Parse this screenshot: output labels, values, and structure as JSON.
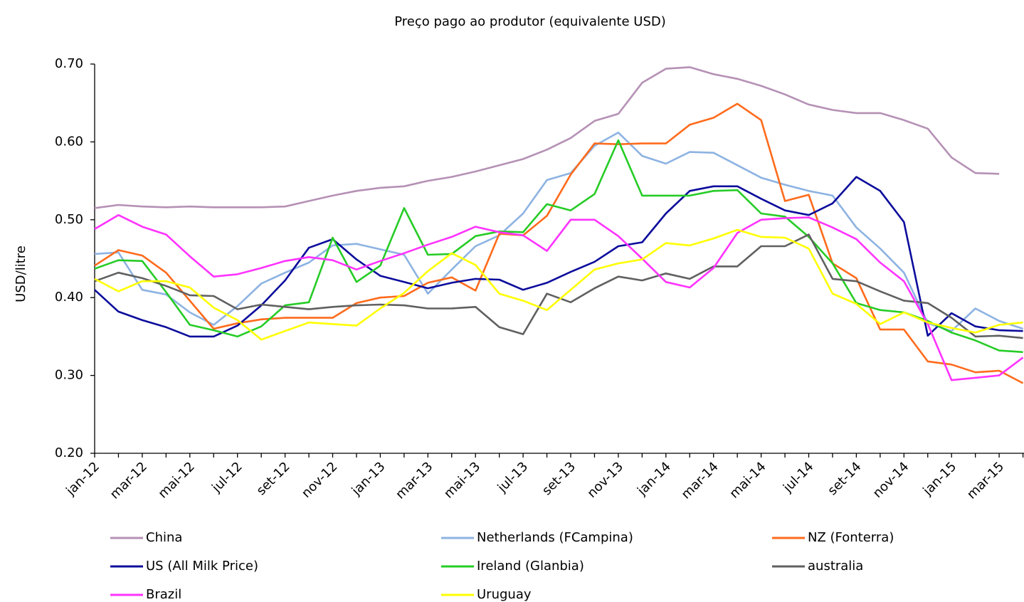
{
  "chart_data": {
    "type": "line",
    "title": "Preço pago ao produtor (equivalente USD)",
    "y_label": "USD/litre",
    "categories": [
      "jan-12",
      null,
      "mar-12",
      null,
      "mai-12",
      null,
      "jul-12",
      null,
      "set-12",
      null,
      "nov-12",
      null,
      "jan-13",
      null,
      "mar-13",
      null,
      "mai-13",
      null,
      "jul-13",
      null,
      "set-13",
      null,
      "nov-13",
      null,
      "jan-14",
      null,
      "mar-14",
      null,
      "mai-14",
      null,
      "jul-14",
      null,
      "set-14",
      null,
      "nov-14",
      null,
      "jan-15",
      null,
      "mar-15",
      null
    ],
    "ylim": [
      0.2,
      0.7
    ],
    "yticks": [
      {
        "value": 0.2,
        "label": "0.20"
      },
      {
        "value": 0.3,
        "label": "0.30"
      },
      {
        "value": 0.4,
        "label": "0.40"
      },
      {
        "value": 0.5,
        "label": "0.50"
      },
      {
        "value": 0.6,
        "label": "0.60"
      },
      {
        "value": 0.7,
        "label": "0.70"
      }
    ],
    "grid": false,
    "legend": "bottom",
    "series": [
      {
        "name": "China",
        "color": "#b591b5",
        "values": [
          0.515,
          0.519,
          0.517,
          0.516,
          0.517,
          0.516,
          0.516,
          0.516,
          0.517,
          0.524,
          0.531,
          0.537,
          0.541,
          0.543,
          0.55,
          0.555,
          0.562,
          0.57,
          0.578,
          0.59,
          0.605,
          0.627,
          0.636,
          0.676,
          0.694,
          0.696,
          0.687,
          0.681,
          0.672,
          0.661,
          0.648,
          0.641,
          0.637,
          0.637,
          0.628,
          0.617,
          0.58,
          0.56,
          0.559,
          null
        ]
      },
      {
        "name": "Netherlands (FCampina)",
        "color": "#8db3e2",
        "values": [
          0.456,
          0.458,
          0.41,
          0.404,
          0.381,
          0.365,
          0.389,
          0.418,
          0.432,
          0.445,
          0.467,
          0.469,
          0.462,
          0.455,
          0.405,
          0.436,
          0.466,
          0.48,
          0.508,
          0.551,
          0.56,
          0.595,
          0.612,
          0.582,
          0.572,
          0.587,
          0.586,
          0.57,
          0.554,
          0.545,
          0.537,
          0.531,
          0.49,
          0.463,
          0.432,
          0.367,
          0.357,
          0.386,
          0.37,
          0.36
        ]
      },
      {
        "name": "NZ (Fonterra)",
        "color": "#ff6b1c",
        "values": [
          0.441,
          0.461,
          0.454,
          0.432,
          0.396,
          0.36,
          0.367,
          0.372,
          0.374,
          0.374,
          0.374,
          0.393,
          0.4,
          0.402,
          0.419,
          0.426,
          0.409,
          0.482,
          0.48,
          0.505,
          0.558,
          0.598,
          0.597,
          0.598,
          0.598,
          0.622,
          0.631,
          0.649,
          0.628,
          0.524,
          0.532,
          0.444,
          0.425,
          0.359,
          0.359,
          0.318,
          0.314,
          0.304,
          0.306,
          0.29
        ]
      },
      {
        "name": "US (All Milk Price)",
        "color": "#0c0c9c",
        "values": [
          0.41,
          0.382,
          0.371,
          0.362,
          0.35,
          0.35,
          0.364,
          0.39,
          0.422,
          0.464,
          0.475,
          0.449,
          0.428,
          0.42,
          0.412,
          0.419,
          0.424,
          0.423,
          0.41,
          0.419,
          0.433,
          0.446,
          0.466,
          0.471,
          0.508,
          0.537,
          0.543,
          0.543,
          0.527,
          0.512,
          0.506,
          0.521,
          0.555,
          0.537,
          0.497,
          0.351,
          0.38,
          0.363,
          0.358,
          0.357
        ]
      },
      {
        "name": "Ireland (Glanbia)",
        "color": "#26cc26",
        "values": [
          0.437,
          0.448,
          0.447,
          0.407,
          0.365,
          0.358,
          0.35,
          0.363,
          0.39,
          0.394,
          0.477,
          0.42,
          0.441,
          0.515,
          0.455,
          0.456,
          0.479,
          0.485,
          0.484,
          0.52,
          0.512,
          0.533,
          0.602,
          0.531,
          0.531,
          0.531,
          0.537,
          0.538,
          0.508,
          0.504,
          0.478,
          0.444,
          0.393,
          0.384,
          0.381,
          0.37,
          0.355,
          0.345,
          0.332,
          0.33
        ]
      },
      {
        "name": "australia",
        "color": "#606060",
        "values": [
          0.421,
          0.432,
          0.425,
          0.415,
          0.403,
          0.402,
          0.385,
          0.391,
          0.388,
          0.385,
          0.388,
          0.39,
          0.391,
          0.39,
          0.386,
          0.386,
          0.388,
          0.362,
          0.353,
          0.405,
          0.394,
          0.412,
          0.427,
          0.422,
          0.431,
          0.424,
          0.44,
          0.44,
          0.466,
          0.466,
          0.481,
          0.424,
          0.421,
          0.408,
          0.396,
          0.393,
          0.374,
          0.35,
          0.351,
          0.348
        ]
      },
      {
        "name": "Brazil",
        "color": "#ff33ff",
        "values": [
          0.488,
          0.506,
          0.491,
          0.481,
          0.453,
          0.427,
          0.43,
          0.438,
          0.447,
          0.452,
          0.448,
          0.436,
          0.447,
          0.457,
          0.468,
          0.478,
          0.491,
          0.484,
          0.48,
          0.46,
          0.5,
          0.5,
          0.479,
          0.45,
          0.42,
          0.413,
          0.438,
          0.483,
          0.5,
          0.502,
          0.503,
          0.49,
          0.475,
          0.445,
          0.421,
          0.366,
          0.294,
          0.297,
          0.3,
          0.323
        ]
      },
      {
        "name": "Uruguay",
        "color": "#ffff00",
        "values": [
          0.424,
          0.408,
          0.421,
          0.421,
          0.413,
          0.387,
          0.371,
          0.346,
          0.357,
          0.368,
          0.366,
          0.364,
          0.386,
          0.406,
          0.434,
          0.457,
          0.442,
          0.405,
          0.396,
          0.384,
          0.41,
          0.436,
          0.444,
          0.449,
          0.47,
          0.467,
          0.476,
          0.487,
          0.478,
          0.477,
          0.463,
          0.405,
          0.392,
          0.366,
          0.381,
          0.368,
          0.361,
          0.355,
          0.365,
          0.368
        ]
      }
    ]
  }
}
